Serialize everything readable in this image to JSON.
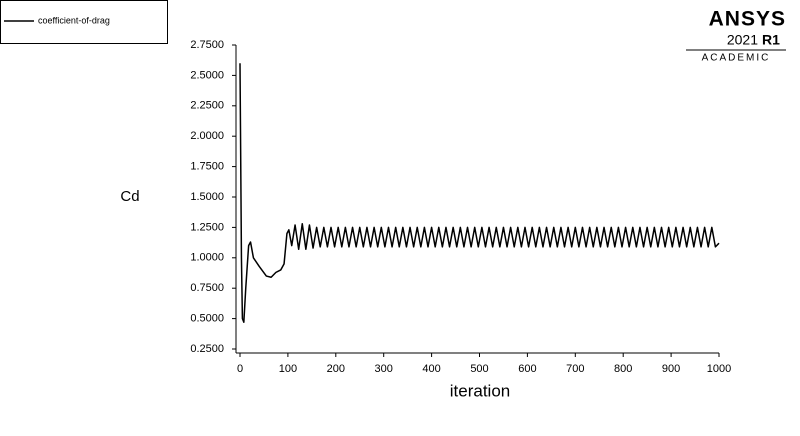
{
  "chart_data": {
    "type": "line",
    "x_label": "iteration",
    "y_label": "Cd",
    "x": [
      0,
      3,
      5,
      8,
      12,
      18,
      22,
      28,
      40,
      55,
      65,
      75,
      85,
      92,
      98,
      102,
      108,
      115,
      122.5,
      130,
      137.5,
      145,
      152.5,
      160,
      167.5,
      175,
      182.5,
      190,
      197.5,
      205,
      212.5,
      220,
      227.5,
      235,
      242.5,
      250,
      257.5,
      265,
      272.5,
      280,
      287.5,
      295,
      302.5,
      310,
      317.5,
      325,
      332.5,
      340,
      347.5,
      355,
      362.5,
      370,
      377.5,
      385,
      392.5,
      400,
      407.5,
      415,
      422.5,
      430,
      437.5,
      445,
      452.5,
      460,
      467.5,
      475,
      482.5,
      490,
      497.5,
      505,
      512.5,
      520,
      527.5,
      535,
      542.5,
      550,
      557.5,
      565,
      572.5,
      580,
      587.5,
      595,
      602.5,
      610,
      617.5,
      625,
      632.5,
      640,
      647.5,
      655,
      662.5,
      670,
      677.5,
      685,
      692.5,
      700,
      707.5,
      715,
      722.5,
      730,
      737.5,
      745,
      752.5,
      760,
      767.5,
      775,
      782.5,
      790,
      797.5,
      805,
      812.5,
      820,
      827.5,
      835,
      842.5,
      850,
      857.5,
      865,
      872.5,
      880,
      887.5,
      895,
      902.5,
      910,
      917.5,
      925,
      932.5,
      940,
      947.5,
      955,
      962.5,
      970,
      977.5,
      985,
      992.5,
      1000
    ],
    "series": [
      {
        "name": "coefficient-of-drag",
        "color": "#000000",
        "values": [
          2.6,
          1.0,
          0.5,
          0.47,
          0.75,
          1.1,
          1.13,
          1.0,
          0.93,
          0.85,
          0.84,
          0.88,
          0.9,
          0.95,
          1.2,
          1.23,
          1.1,
          1.27,
          1.07,
          1.28,
          1.07,
          1.27,
          1.08,
          1.25,
          1.09,
          1.25,
          1.09,
          1.25,
          1.09,
          1.25,
          1.09,
          1.25,
          1.09,
          1.25,
          1.09,
          1.25,
          1.09,
          1.25,
          1.09,
          1.25,
          1.09,
          1.25,
          1.09,
          1.25,
          1.09,
          1.25,
          1.09,
          1.25,
          1.09,
          1.25,
          1.09,
          1.25,
          1.09,
          1.25,
          1.09,
          1.25,
          1.09,
          1.25,
          1.09,
          1.25,
          1.09,
          1.25,
          1.09,
          1.25,
          1.09,
          1.25,
          1.09,
          1.25,
          1.09,
          1.25,
          1.09,
          1.25,
          1.09,
          1.25,
          1.09,
          1.25,
          1.09,
          1.25,
          1.09,
          1.25,
          1.09,
          1.25,
          1.09,
          1.25,
          1.09,
          1.25,
          1.09,
          1.25,
          1.09,
          1.25,
          1.09,
          1.25,
          1.09,
          1.25,
          1.09,
          1.25,
          1.09,
          1.25,
          1.09,
          1.25,
          1.09,
          1.25,
          1.09,
          1.25,
          1.09,
          1.25,
          1.09,
          1.25,
          1.09,
          1.25,
          1.09,
          1.25,
          1.09,
          1.25,
          1.09,
          1.25,
          1.09,
          1.25,
          1.09,
          1.25,
          1.09,
          1.25,
          1.09,
          1.25,
          1.09,
          1.25,
          1.09,
          1.25,
          1.09,
          1.25,
          1.09,
          1.25,
          1.09,
          1.25,
          1.09,
          1.12
        ]
      }
    ],
    "xlim": [
      0,
      1000
    ],
    "xticks": [
      0,
      100,
      200,
      300,
      400,
      500,
      600,
      700,
      800,
      900,
      1000
    ],
    "ylim": [
      0.25,
      2.75
    ],
    "yticks": [
      {
        "value": 0.25,
        "label": "0.2500"
      },
      {
        "value": 0.5,
        "label": "0.5000"
      },
      {
        "value": 0.75,
        "label": "0.7500"
      },
      {
        "value": 1,
        "label": "1.0000"
      },
      {
        "value": 1.25,
        "label": "1.2500"
      },
      {
        "value": 1.5,
        "label": "1.5000"
      },
      {
        "value": 1.75,
        "label": "1.7500"
      },
      {
        "value": 2,
        "label": "2.0000"
      },
      {
        "value": 2.25,
        "label": "2.2500"
      },
      {
        "value": 2.5,
        "label": "2.5000"
      },
      {
        "value": 2.75,
        "label": "2.7500"
      }
    ],
    "legend": "top-left"
  },
  "logo": {
    "brand": "ANSYS",
    "version": "2021",
    "release": "R1",
    "edition": "ACADEMIC"
  }
}
